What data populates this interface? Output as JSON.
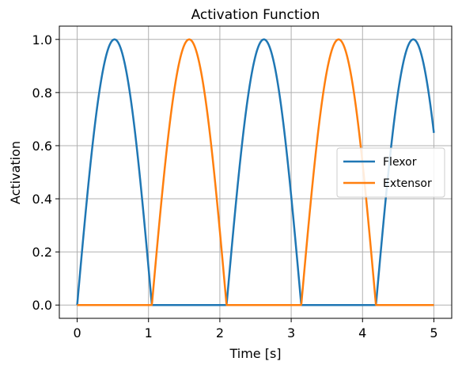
{
  "chart_data": {
    "type": "line",
    "title": "Activation Function",
    "xlabel": "Time [s]",
    "ylabel": "Activation",
    "xlim": [
      -0.25,
      5.25
    ],
    "ylim": [
      -0.05,
      1.05
    ],
    "xticks": [
      0,
      1,
      2,
      3,
      4,
      5
    ],
    "xtick_labels": [
      "0",
      "1",
      "2",
      "3",
      "4",
      "5"
    ],
    "yticks": [
      0.0,
      0.2,
      0.4,
      0.6,
      0.8,
      1.0
    ],
    "ytick_labels": [
      "0.0",
      "0.2",
      "0.4",
      "0.6",
      "0.8",
      "1.0"
    ],
    "grid": true,
    "legend_position": "center-right",
    "period_s": 2.094,
    "series": [
      {
        "name": "Flexor",
        "color": "#1f77b4",
        "phase": "sin-positive",
        "x_start": 0,
        "x_end": 5
      },
      {
        "name": "Extensor",
        "color": "#ff7f0e",
        "phase": "sin-negative",
        "x_start": 0,
        "x_end": 5
      }
    ]
  }
}
